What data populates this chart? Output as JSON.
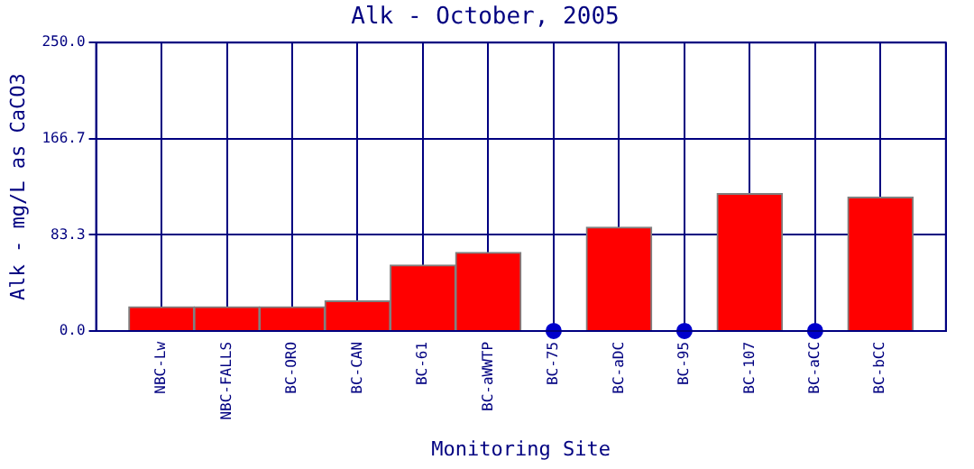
{
  "chart_data": {
    "type": "bar",
    "title": "Alk - October, 2005",
    "xlabel": "Monitoring Site",
    "ylabel": "Alk - mg/L as CaCO3",
    "categories": [
      "NBC-Lw",
      "NBC-FALLS",
      "BC-ORO",
      "BC-CAN",
      "BC-61",
      "BC-aWWTP",
      "BC-75",
      "BC-aDC",
      "BC-95",
      "BC-107",
      "BC-aCC",
      "BC-bCC"
    ],
    "series": [
      {
        "color": "#ff0000",
        "values": [
          21,
          21,
          21,
          26,
          57,
          68,
          null,
          90,
          null,
          119,
          null,
          116
        ]
      },
      {
        "type": "scatter",
        "color": "#0000cc",
        "x": [
          "BC-75",
          "BC-95",
          "BC-aCC"
        ],
        "values": [
          0,
          0,
          0
        ]
      }
    ],
    "ylim": [
      0,
      250
    ],
    "yticks": [
      {
        "value": 0,
        "label": "0.0"
      },
      83.3,
      166.7,
      {
        "value": 250,
        "label": "250.0"
      }
    ],
    "grid": true,
    "legend": false,
    "marker": "circle"
  }
}
